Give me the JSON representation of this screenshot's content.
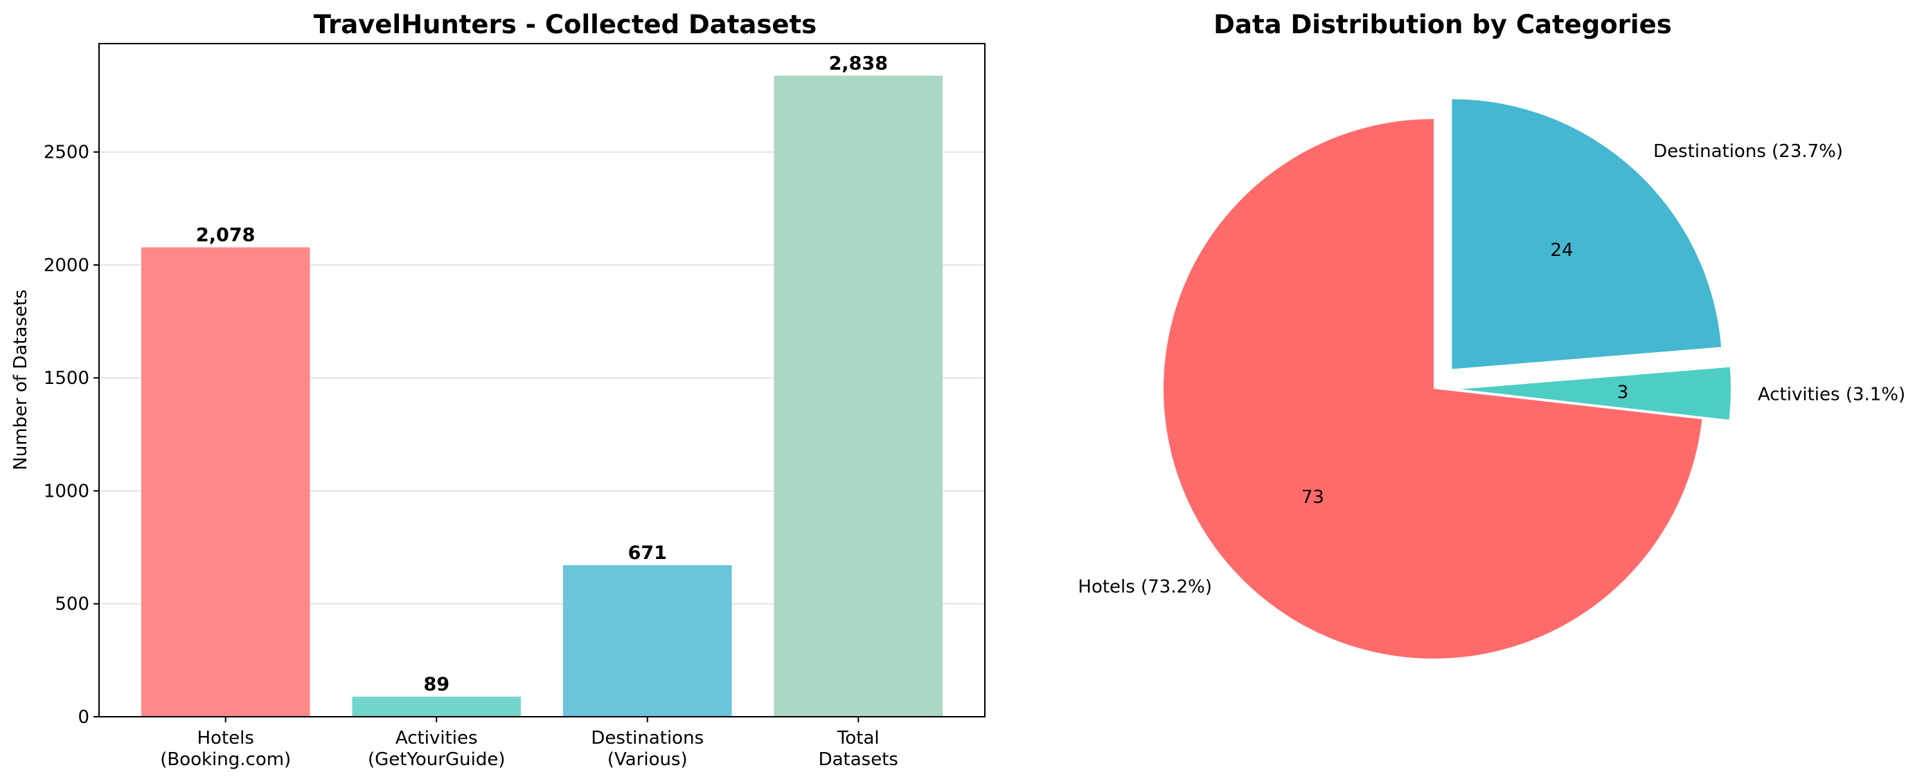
{
  "chart_data": [
    {
      "type": "bar",
      "title": "TravelHunters - Collected Datasets",
      "ylabel": "Number of Datasets",
      "xlabel": "",
      "categories": [
        "Hotels\n(Booking.com)",
        "Activities\n(GetYourGuide)",
        "Destinations\n(Various)",
        "Total\nDatasets"
      ],
      "values": [
        2078,
        89,
        671,
        2838
      ],
      "data_labels": [
        "2,078",
        "89",
        "671",
        "2,838"
      ],
      "colors": [
        "#ff8888",
        "#72d6cc",
        "#6ac5dc",
        "#abd8c4"
      ],
      "ylim": [
        0,
        2980
      ],
      "yticks": [
        0,
        500,
        1000,
        1500,
        2000,
        2500
      ],
      "grid": "y"
    },
    {
      "type": "pie",
      "title": "Data Distribution by Categories",
      "slices": [
        {
          "label": "Hotels (73.2%)",
          "value": 73.2,
          "pct_text": "73",
          "color": "#ff6b6b",
          "explode": 0
        },
        {
          "label": "Activities (3.1%)",
          "value": 3.1,
          "pct_text": "3",
          "color": "#4ecdc4",
          "explode": 0.1
        },
        {
          "label": "Destinations (23.7%)",
          "value": 23.7,
          "pct_text": "24",
          "color": "#45b7d1",
          "explode": 0.1
        }
      ],
      "start_angle": 90,
      "direction": "counterclockwise"
    }
  ]
}
